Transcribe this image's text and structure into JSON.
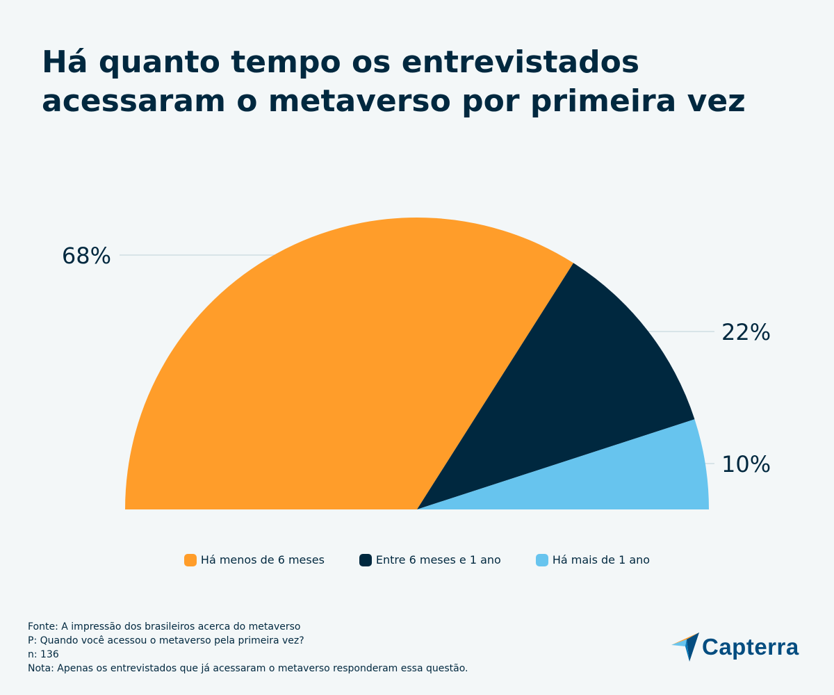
{
  "chart_data": {
    "type": "pie",
    "subtype": "semi-circle",
    "title": [
      "Há quanto tempo os entrevistados",
      "acessaram o metaverso por primeira vez"
    ],
    "categories": [
      "Há menos de 6 meses",
      "Entre 6 meses e 1 ano",
      "Há mais de 1 ano"
    ],
    "values": [
      68,
      22,
      10
    ],
    "labels": [
      "68%",
      "22%",
      "10%"
    ],
    "colors": [
      "#ff9d2a",
      "#00283f",
      "#67c4ee"
    ],
    "legend_position": "bottom"
  },
  "footer": {
    "source": "Fonte: A impressão dos brasileiros acerca do metaverso",
    "question": "P: Quando você acessou o metaverso pela primeira vez?",
    "sample": "n: 136",
    "note": "Nota: Apenas os entrevistados que já acessaram o metaverso responderam essa questão."
  },
  "brand": {
    "name": "Capterra",
    "color": "#044d80"
  }
}
